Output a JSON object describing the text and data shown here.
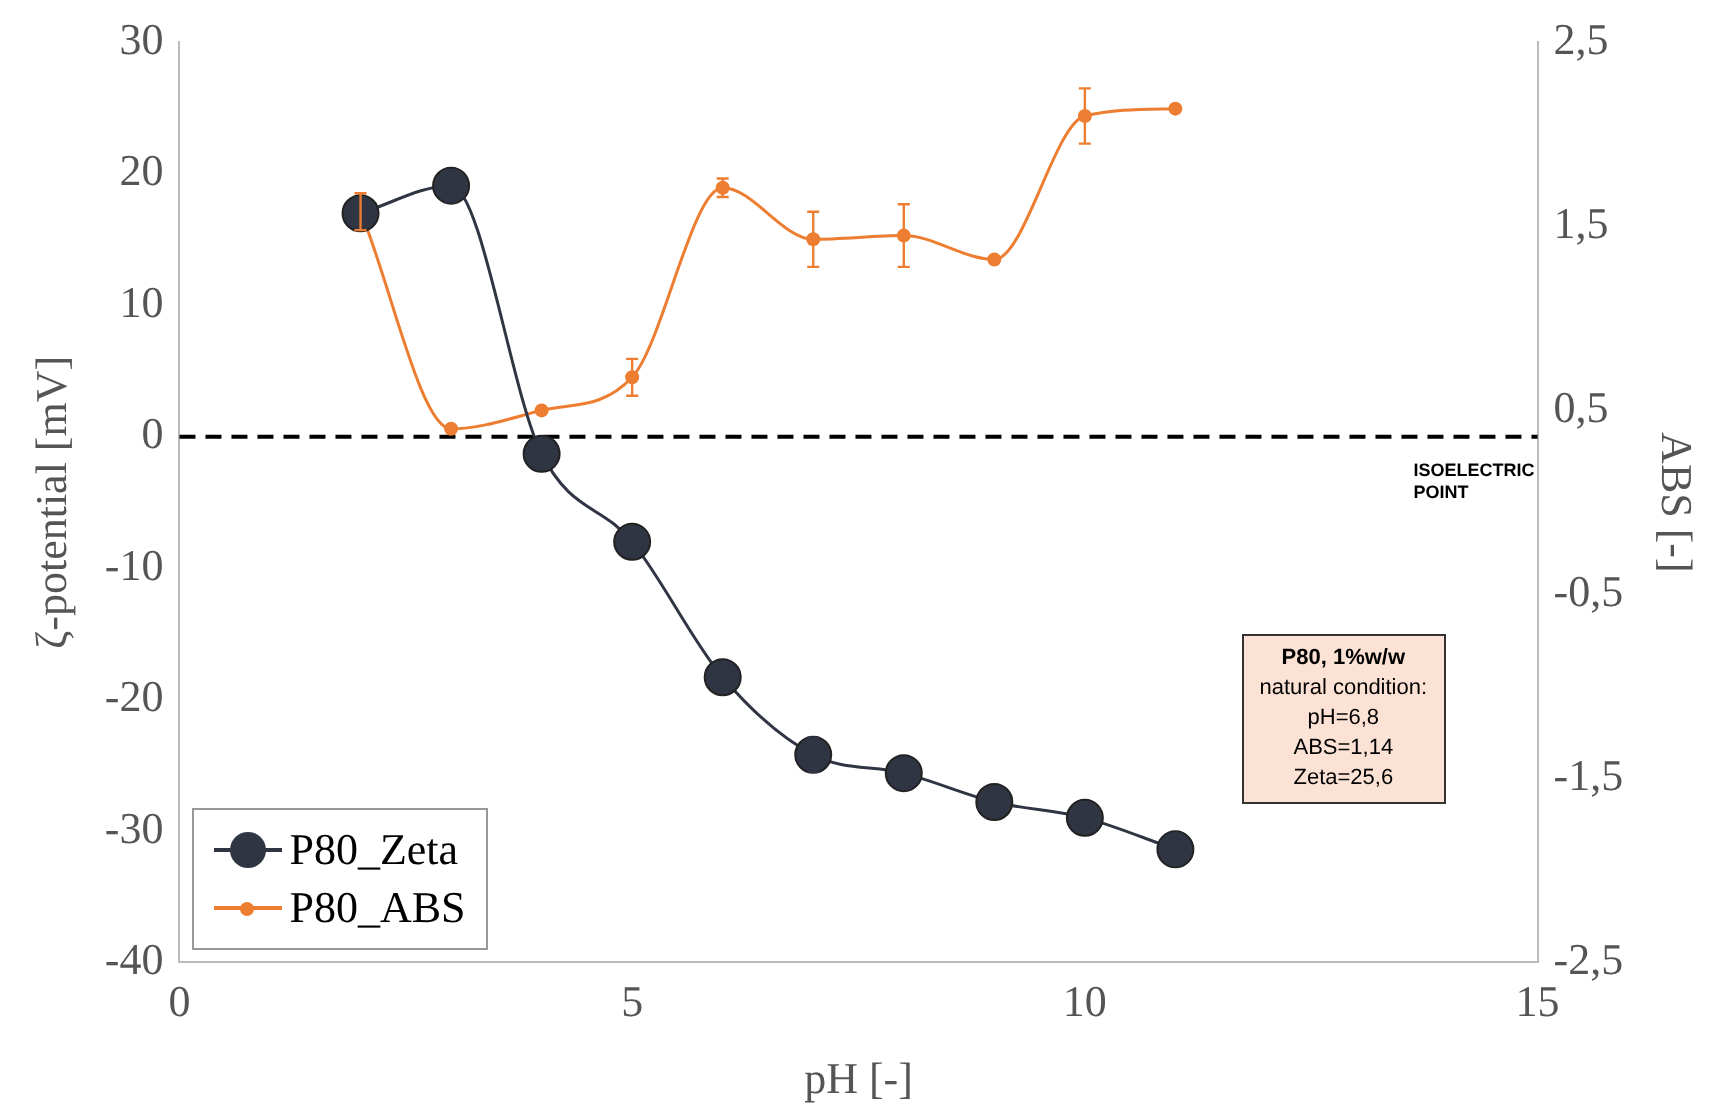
{
  "chart_data": {
    "type": "line",
    "xlabel": "pH [-]",
    "ylabel": "ζ-potential [mV]",
    "y2label": "ABS [-]",
    "xlim": [
      0,
      15
    ],
    "xticks": [
      0,
      5,
      10,
      15
    ],
    "ylim": [
      -40,
      30
    ],
    "yticks": [
      -40,
      -30,
      -20,
      -10,
      0,
      10,
      20,
      30
    ],
    "y2lim": [
      -2.5,
      2.5
    ],
    "y2ticks": [
      {
        "value": -2.5,
        "label": "-2,5"
      },
      {
        "value": -1.5,
        "label": "-1,5"
      },
      {
        "value": -0.5,
        "label": "-0,5"
      },
      {
        "value": 0.5,
        "label": "0,5"
      },
      {
        "value": 1.5,
        "label": "1,5"
      },
      {
        "value": 2.5,
        "label": "2,5"
      }
    ],
    "grid": false,
    "legend": "bottom left",
    "marker": "circle",
    "line_style": "solid",
    "series": [
      {
        "name": "P80_Zeta",
        "color": "#2f3542",
        "x": [
          2,
          3,
          4,
          5,
          6,
          7,
          8,
          9,
          10,
          11
        ],
        "values": [
          17,
          19.1,
          -1.3,
          -8,
          -18.3,
          -24.2,
          -25.6,
          -27.8,
          -29,
          -31.4
        ],
        "errors": [
          1.2,
          1.2,
          null,
          null,
          1,
          1.3,
          1,
          1,
          1,
          1.2
        ]
      },
      {
        "name": "P80_ABS",
        "color": "#ed7d31",
        "axis": "y2",
        "x": [
          2,
          3,
          4,
          5,
          6,
          7,
          8,
          9,
          10,
          11
        ],
        "values": [
          1.58,
          0.4,
          0.5,
          0.68,
          1.71,
          1.43,
          1.45,
          1.32,
          2.1,
          2.14
        ],
        "errors": [
          0.1,
          null,
          null,
          0.1,
          0.05,
          0.15,
          0.17,
          null,
          0.15,
          null
        ]
      }
    ],
    "ref_lines": [
      {
        "axis": "y",
        "value": 0,
        "label": "ISOELECTRIC POINT",
        "line_style": "dashed",
        "color": "#000000"
      }
    ],
    "annotations": [
      "P80, 1%w/w",
      "natural condition:",
      "pH=6,8",
      "ABS=1,14",
      "Zeta=25,6"
    ]
  }
}
